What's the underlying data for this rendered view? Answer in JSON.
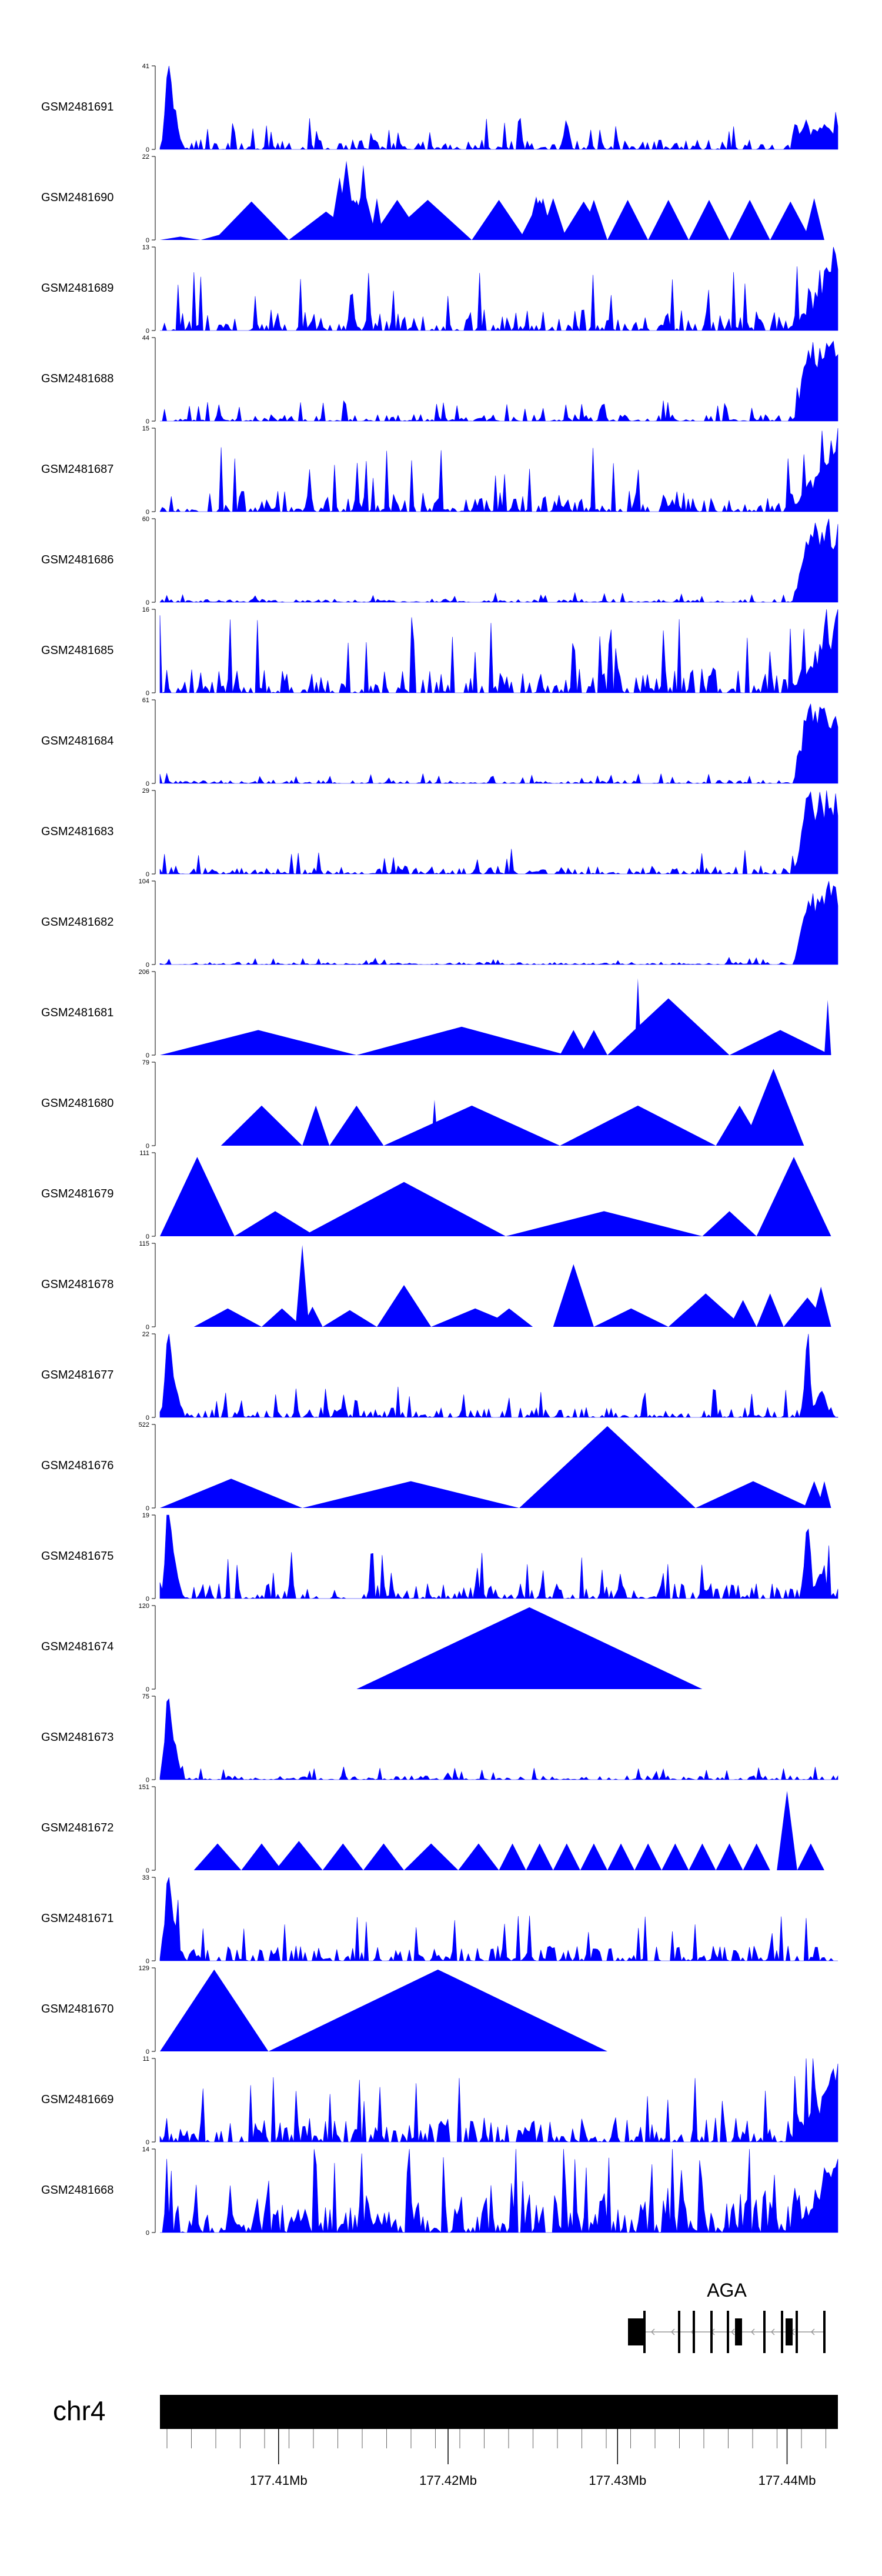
{
  "chart_data": {
    "type": "area",
    "title": "",
    "colors": {
      "signal": "#0000ff",
      "axis": "#000000",
      "gene": "#000000"
    },
    "tracks": [
      {
        "name": "GSM2481691",
        "ymax": 41,
        "ymin": 0,
        "profile": "spiky-left",
        "peak_x": 0.01,
        "noise": 0.12
      },
      {
        "name": "GSM2481690",
        "ymax": 22,
        "ymin": 0,
        "profile": "triangles",
        "triangles": [
          [
            0.0,
            0.06,
            0.04
          ],
          [
            0.06,
            0.14,
            0.09
          ],
          [
            0.08,
            0.19,
            0.46
          ],
          [
            0.19,
            0.3,
            0.34
          ],
          [
            0.23,
            0.33,
            0.5
          ],
          [
            0.24,
            0.31,
            0.52
          ],
          [
            0.24,
            0.33,
            0.48
          ],
          [
            0.26,
            0.29,
            0.95
          ],
          [
            0.27,
            0.31,
            0.48
          ],
          [
            0.25,
            0.28,
            0.75
          ],
          [
            0.28,
            0.32,
            0.65
          ],
          [
            0.31,
            0.33,
            0.5
          ],
          [
            0.29,
            0.31,
            0.9
          ],
          [
            0.31,
            0.39,
            0.48
          ],
          [
            0.33,
            0.46,
            0.48
          ],
          [
            0.46,
            0.54,
            0.48
          ],
          [
            0.53,
            0.59,
            0.48
          ],
          [
            0.55,
            0.58,
            0.5
          ],
          [
            0.54,
            0.57,
            0.52
          ],
          [
            0.56,
            0.6,
            0.5
          ],
          [
            0.59,
            0.66,
            0.46
          ],
          [
            0.62,
            0.66,
            0.48
          ],
          [
            0.66,
            0.72,
            0.48
          ],
          [
            0.72,
            0.78,
            0.48
          ],
          [
            0.78,
            0.84,
            0.48
          ],
          [
            0.84,
            0.9,
            0.48
          ],
          [
            0.9,
            0.96,
            0.46
          ],
          [
            0.95,
            0.98,
            0.5
          ]
        ]
      },
      {
        "name": "GSM2481689",
        "ymax": 13,
        "ymin": 0,
        "profile": "spiky-right",
        "peak_x": 0.98,
        "noise": 0.25
      },
      {
        "name": "GSM2481688",
        "ymax": 44,
        "ymin": 0,
        "profile": "bulk-right",
        "peak_x": 0.97,
        "noise": 0.08
      },
      {
        "name": "GSM2481687",
        "ymax": 15,
        "ymin": 0,
        "profile": "spiky-right",
        "peak_x": 0.98,
        "noise": 0.25
      },
      {
        "name": "GSM2481686",
        "ymax": 60,
        "ymin": 0,
        "profile": "bulk-right",
        "peak_x": 0.97,
        "noise": 0.04
      },
      {
        "name": "GSM2481685",
        "ymax": 16,
        "ymin": 0,
        "profile": "spiky-right",
        "peak_x": 0.98,
        "noise": 0.3
      },
      {
        "name": "GSM2481684",
        "ymax": 61,
        "ymin": 0,
        "profile": "bulk-right",
        "peak_x": 0.96,
        "noise": 0.04
      },
      {
        "name": "GSM2481683",
        "ymax": 29,
        "ymin": 0,
        "profile": "bulk-right",
        "peak_x": 0.97,
        "noise": 0.1
      },
      {
        "name": "GSM2481682",
        "ymax": 104,
        "ymin": 0,
        "profile": "bulk-right",
        "peak_x": 0.96,
        "noise": 0.03
      },
      {
        "name": "GSM2481681",
        "ymax": 206,
        "ymin": 0,
        "profile": "triangles",
        "triangles": [
          [
            0.0,
            0.29,
            0.3
          ],
          [
            0.29,
            0.6,
            0.34
          ],
          [
            0.59,
            0.63,
            0.3
          ],
          [
            0.62,
            0.66,
            0.3
          ],
          [
            0.66,
            0.84,
            0.68
          ],
          [
            0.7,
            0.71,
            0.92
          ],
          [
            0.84,
            0.99,
            0.3
          ],
          [
            0.98,
            0.99,
            0.66
          ]
        ]
      },
      {
        "name": "GSM2481680",
        "ymax": 79,
        "ymin": 0,
        "profile": "triangles",
        "triangles": [
          [
            0.09,
            0.21,
            0.48
          ],
          [
            0.21,
            0.25,
            0.48
          ],
          [
            0.25,
            0.33,
            0.48
          ],
          [
            0.33,
            0.59,
            0.48
          ],
          [
            0.4,
            0.41,
            0.55
          ],
          [
            0.59,
            0.82,
            0.48
          ],
          [
            0.82,
            0.89,
            0.48
          ],
          [
            0.86,
            0.95,
            0.92
          ]
        ]
      },
      {
        "name": "GSM2481679",
        "ymax": 111,
        "ymin": 0,
        "profile": "triangles",
        "triangles": [
          [
            0.0,
            0.11,
            0.95
          ],
          [
            0.11,
            0.23,
            0.3
          ],
          [
            0.21,
            0.51,
            0.65
          ],
          [
            0.51,
            0.8,
            0.3
          ],
          [
            0.8,
            0.88,
            0.3
          ],
          [
            0.88,
            0.99,
            0.95
          ]
        ]
      },
      {
        "name": "GSM2481678",
        "ymax": 115,
        "ymin": 0,
        "profile": "triangles",
        "triangles": [
          [
            0.05,
            0.15,
            0.22
          ],
          [
            0.15,
            0.21,
            0.22
          ],
          [
            0.2,
            0.22,
            0.98
          ],
          [
            0.21,
            0.24,
            0.24
          ],
          [
            0.24,
            0.32,
            0.2
          ],
          [
            0.32,
            0.4,
            0.5
          ],
          [
            0.4,
            0.53,
            0.22
          ],
          [
            0.48,
            0.55,
            0.22
          ],
          [
            0.58,
            0.64,
            0.75
          ],
          [
            0.64,
            0.75,
            0.22
          ],
          [
            0.75,
            0.86,
            0.4
          ],
          [
            0.84,
            0.88,
            0.32
          ],
          [
            0.88,
            0.92,
            0.4
          ],
          [
            0.92,
            0.99,
            0.35
          ],
          [
            0.96,
            0.99,
            0.48
          ]
        ]
      },
      {
        "name": "GSM2481677",
        "ymax": 22,
        "ymin": 0,
        "profile": "spiky-both",
        "peak_x": 0.01,
        "noise": 0.12
      },
      {
        "name": "GSM2481676",
        "ymax": 522,
        "ymin": 0,
        "profile": "triangles",
        "triangles": [
          [
            0.0,
            0.21,
            0.35
          ],
          [
            0.21,
            0.53,
            0.32
          ],
          [
            0.53,
            0.79,
            0.98
          ],
          [
            0.79,
            0.96,
            0.32
          ],
          [
            0.95,
            0.98,
            0.32
          ],
          [
            0.97,
            0.99,
            0.32
          ]
        ]
      },
      {
        "name": "GSM2481675",
        "ymax": 19,
        "ymin": 0,
        "profile": "spiky-both",
        "peak_x": 0.01,
        "noise": 0.18
      },
      {
        "name": "GSM2481674",
        "ymax": 120,
        "ymin": 0,
        "profile": "triangles",
        "triangles": [
          [
            0.29,
            0.8,
            0.98
          ]
        ]
      },
      {
        "name": "GSM2481673",
        "ymax": 75,
        "ymin": 0,
        "profile": "spiky-left",
        "peak_x": 0.01,
        "noise": 0.05
      },
      {
        "name": "GSM2481672",
        "ymax": 151,
        "ymin": 0,
        "profile": "triangles",
        "triangles": [
          [
            0.05,
            0.12,
            0.32
          ],
          [
            0.12,
            0.18,
            0.32
          ],
          [
            0.17,
            0.24,
            0.35
          ],
          [
            0.24,
            0.3,
            0.32
          ],
          [
            0.3,
            0.36,
            0.32
          ],
          [
            0.36,
            0.44,
            0.32
          ],
          [
            0.44,
            0.5,
            0.32
          ],
          [
            0.5,
            0.54,
            0.32
          ],
          [
            0.54,
            0.58,
            0.32
          ],
          [
            0.58,
            0.62,
            0.32
          ],
          [
            0.62,
            0.66,
            0.32
          ],
          [
            0.66,
            0.7,
            0.32
          ],
          [
            0.7,
            0.74,
            0.32
          ],
          [
            0.74,
            0.78,
            0.32
          ],
          [
            0.78,
            0.82,
            0.32
          ],
          [
            0.82,
            0.86,
            0.32
          ],
          [
            0.86,
            0.9,
            0.32
          ],
          [
            0.91,
            0.94,
            0.95
          ],
          [
            0.94,
            0.98,
            0.32
          ]
        ]
      },
      {
        "name": "GSM2481671",
        "ymax": 33,
        "ymin": 0,
        "profile": "spiky-left",
        "peak_x": 0.01,
        "noise": 0.18
      },
      {
        "name": "GSM2481670",
        "ymax": 129,
        "ymin": 0,
        "profile": "triangles",
        "triangles": [
          [
            0.0,
            0.16,
            0.98
          ],
          [
            0.16,
            0.66,
            0.98
          ]
        ]
      },
      {
        "name": "GSM2481669",
        "ymax": 11,
        "ymin": 0,
        "profile": "spiky-right",
        "peak_x": 0.98,
        "noise": 0.3
      },
      {
        "name": "GSM2481668",
        "ymax": 14,
        "ymin": 0,
        "profile": "spiky-dense",
        "peak_x": 0.97,
        "noise": 0.35
      }
    ],
    "gene": {
      "name": "AGA",
      "strand": "-"
    },
    "ideogram": {
      "chromosome": "chr4"
    },
    "axis": {
      "range": [
        177.403,
        177.443
      ],
      "ticks": [
        177.41,
        177.42,
        177.43,
        177.44
      ],
      "tick_labels": [
        "177.41Mb",
        "177.42Mb",
        "177.43Mb",
        "177.44Mb"
      ]
    }
  }
}
